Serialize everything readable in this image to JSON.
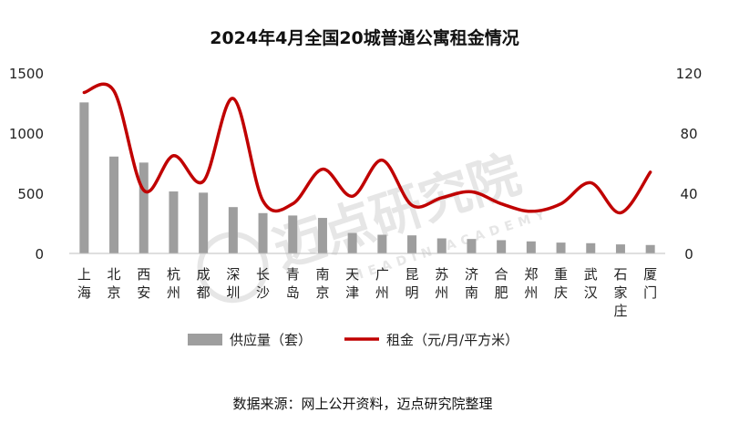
{
  "chart_data": {
    "type": "bar",
    "title": "2024年4月全国20城普通公寓租金情况",
    "categories": [
      "上海",
      "北京",
      "西安",
      "杭州",
      "成都",
      "深圳",
      "长沙",
      "青岛",
      "南京",
      "天津",
      "广州",
      "昆明",
      "苏州",
      "济南",
      "合肥",
      "郑州",
      "重庆",
      "武汉",
      "石家庄",
      "厦门"
    ],
    "series": [
      {
        "name": "供应量（套）",
        "type": "bar",
        "axis": "left",
        "color": "#9e9e9e",
        "values": [
          1255,
          805,
          755,
          515,
          505,
          385,
          335,
          315,
          295,
          170,
          155,
          150,
          125,
          120,
          110,
          100,
          90,
          85,
          75,
          70
        ]
      },
      {
        "name": "租金（元/月/平方米）",
        "type": "line",
        "axis": "right",
        "color": "#c00000",
        "values": [
          107,
          108,
          42,
          65,
          48,
          103,
          35,
          33,
          56,
          38,
          62,
          32,
          37,
          41,
          33,
          28,
          33,
          47,
          27,
          54
        ]
      }
    ],
    "y_left": {
      "ticks": [
        "0",
        "500",
        "1000",
        "1500"
      ],
      "min": 0,
      "max": 1500
    },
    "y_right": {
      "ticks": [
        "0",
        "40",
        "80",
        "120"
      ],
      "min": 0,
      "max": 120
    },
    "legend_position": "bottom",
    "grid": false
  },
  "source_text": "数据来源：网上公开资料，迈点研究院整理",
  "watermark": {
    "text": "迈点研究院",
    "subtext": "MEADIN ACADEMY"
  }
}
